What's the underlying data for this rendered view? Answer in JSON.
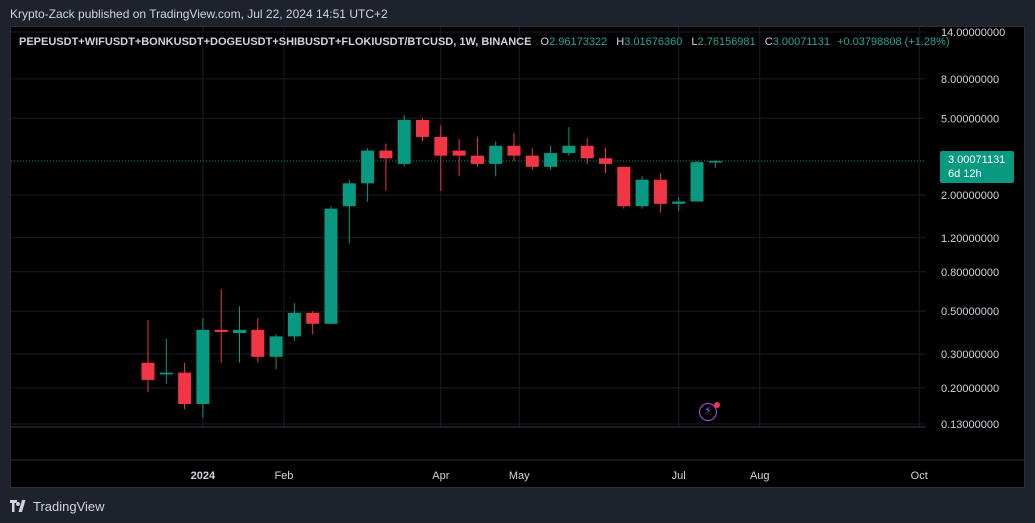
{
  "header": {
    "publisher_line": "Krypto-Zack published on TradingView.com, Jul 22, 2024 14:51 UTC+2"
  },
  "legend": {
    "symbol": "PEPEUSDT+WIFUSDT+BONKUSDT+DOGEUSDT+SHIBUSDT+FLOKIUSDT/BTCUSD, 1W, BINANCE",
    "o_label": "O",
    "o_value": "2.96173322",
    "h_label": "H",
    "h_value": "3.01676360",
    "l_label": "L",
    "l_value": "2.76156981",
    "c_label": "C",
    "c_value": "3.00071131",
    "change": "+0.03798808 (+1.28%)"
  },
  "price_tag": {
    "price": "3.00071131",
    "countdown": "6d 12h"
  },
  "footer": {
    "brand": "TradingView"
  },
  "colors": {
    "up": "#089981",
    "down": "#f23645",
    "background": "#000000",
    "grid": "#1a1d26"
  },
  "chart_data": {
    "type": "candlestick",
    "scale": "log",
    "interval": "1W",
    "y_ticks": [
      "14.00000000",
      "8.00000000",
      "5.00000000",
      "3.00071131",
      "2.00000000",
      "1.20000000",
      "0.80000000",
      "0.50000000",
      "0.30000000",
      "0.20000000",
      "0.13000000"
    ],
    "x_ticks": [
      {
        "label": "2024",
        "date": "2024-01-01"
      },
      {
        "label": "Feb",
        "date": "2024-02-01"
      },
      {
        "label": "Apr",
        "date": "2024-04-01"
      },
      {
        "label": "May",
        "date": "2024-05-01"
      },
      {
        "label": "Jul",
        "date": "2024-07-01"
      },
      {
        "label": "Aug",
        "date": "2024-08-01"
      },
      {
        "label": "Oct",
        "date": "2024-10-01"
      }
    ],
    "last_price": 3.00071131,
    "candles": [
      {
        "date": "2023-12-11",
        "o": 0.27,
        "h": 0.45,
        "l": 0.19,
        "c": 0.22
      },
      {
        "date": "2023-12-18",
        "o": 0.235,
        "h": 0.36,
        "l": 0.21,
        "c": 0.24
      },
      {
        "date": "2023-12-25",
        "o": 0.24,
        "h": 0.27,
        "l": 0.155,
        "c": 0.165
      },
      {
        "date": "2024-01-01",
        "o": 0.165,
        "h": 0.46,
        "l": 0.14,
        "c": 0.4
      },
      {
        "date": "2024-01-08",
        "o": 0.4,
        "h": 0.65,
        "l": 0.27,
        "c": 0.39
      },
      {
        "date": "2024-01-15",
        "o": 0.385,
        "h": 0.53,
        "l": 0.27,
        "c": 0.4
      },
      {
        "date": "2024-01-22",
        "o": 0.4,
        "h": 0.46,
        "l": 0.27,
        "c": 0.29
      },
      {
        "date": "2024-01-29",
        "o": 0.29,
        "h": 0.38,
        "l": 0.25,
        "c": 0.37
      },
      {
        "date": "2024-02-05",
        "o": 0.37,
        "h": 0.55,
        "l": 0.35,
        "c": 0.49
      },
      {
        "date": "2024-02-12",
        "o": 0.49,
        "h": 0.5,
        "l": 0.38,
        "c": 0.43
      },
      {
        "date": "2024-02-19",
        "o": 0.43,
        "h": 1.75,
        "l": 0.43,
        "c": 1.7
      },
      {
        "date": "2024-02-26",
        "o": 1.75,
        "h": 2.4,
        "l": 1.12,
        "c": 2.3
      },
      {
        "date": "2024-03-04",
        "o": 2.3,
        "h": 3.5,
        "l": 1.85,
        "c": 3.4
      },
      {
        "date": "2024-03-11",
        "o": 3.4,
        "h": 3.7,
        "l": 2.1,
        "c": 3.1
      },
      {
        "date": "2024-03-18",
        "o": 2.9,
        "h": 5.2,
        "l": 2.8,
        "c": 4.9
      },
      {
        "date": "2024-03-25",
        "o": 4.9,
        "h": 5.0,
        "l": 3.8,
        "c": 4.0
      },
      {
        "date": "2024-04-01",
        "o": 4.0,
        "h": 4.6,
        "l": 2.1,
        "c": 3.2
      },
      {
        "date": "2024-04-08",
        "o": 3.4,
        "h": 3.9,
        "l": 2.5,
        "c": 3.2
      },
      {
        "date": "2024-04-15",
        "o": 3.2,
        "h": 4.0,
        "l": 2.8,
        "c": 2.9
      },
      {
        "date": "2024-04-22",
        "o": 2.9,
        "h": 3.8,
        "l": 2.5,
        "c": 3.6
      },
      {
        "date": "2024-04-29",
        "o": 3.6,
        "h": 4.2,
        "l": 3.0,
        "c": 3.2
      },
      {
        "date": "2024-05-06",
        "o": 3.2,
        "h": 3.5,
        "l": 2.7,
        "c": 2.8
      },
      {
        "date": "2024-05-13",
        "o": 2.8,
        "h": 3.6,
        "l": 2.7,
        "c": 3.3
      },
      {
        "date": "2024-05-20",
        "o": 3.3,
        "h": 4.5,
        "l": 3.2,
        "c": 3.6
      },
      {
        "date": "2024-05-27",
        "o": 3.6,
        "h": 3.95,
        "l": 2.9,
        "c": 3.1
      },
      {
        "date": "2024-06-03",
        "o": 3.1,
        "h": 3.5,
        "l": 2.6,
        "c": 2.9
      },
      {
        "date": "2024-06-10",
        "o": 2.8,
        "h": 2.8,
        "l": 1.7,
        "c": 1.75
      },
      {
        "date": "2024-06-17",
        "o": 1.75,
        "h": 2.5,
        "l": 1.7,
        "c": 2.4
      },
      {
        "date": "2024-06-24",
        "o": 2.4,
        "h": 2.6,
        "l": 1.62,
        "c": 1.8
      },
      {
        "date": "2024-07-01",
        "o": 1.8,
        "h": 1.95,
        "l": 1.65,
        "c": 1.85
      },
      {
        "date": "2024-07-08",
        "o": 1.85,
        "h": 3.0,
        "l": 1.85,
        "c": 2.96
      },
      {
        "date": "2024-07-15",
        "o": 2.96173322,
        "h": 3.0167636,
        "l": 2.76156981,
        "c": 3.00071131
      }
    ]
  }
}
